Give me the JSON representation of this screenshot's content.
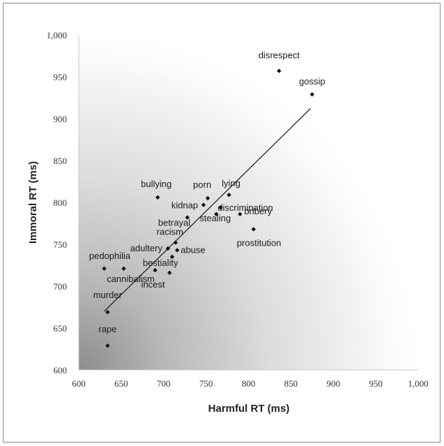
{
  "chart_data": {
    "type": "scatter",
    "xlabel": "Harmful RT (ms)",
    "ylabel": "Immoral RT (ms)",
    "xlim": [
      600,
      1000
    ],
    "ylim": [
      600,
      1000
    ],
    "xticks": [
      "600",
      "650",
      "700",
      "750",
      "800",
      "850",
      "900",
      "950",
      "1,000"
    ],
    "yticks": [
      "600",
      "650",
      "700",
      "750",
      "800",
      "850",
      "900",
      "950",
      "1,000"
    ],
    "grid": false,
    "legend": "none",
    "background": "radial gradient, darkest at lower-left",
    "marker_color": "#111111",
    "points": [
      {
        "label": "disrespect",
        "x": 836,
        "y": 957
      },
      {
        "label": "gossip",
        "x": 875,
        "y": 929
      },
      {
        "label": "bullying",
        "x": 693,
        "y": 806
      },
      {
        "label": "porn",
        "x": 752,
        "y": 805
      },
      {
        "label": "lying",
        "x": 777,
        "y": 809
      },
      {
        "label": "kidnap",
        "x": 747,
        "y": 797
      },
      {
        "label": "discrimination",
        "x": 767,
        "y": 794
      },
      {
        "label": "bribery",
        "x": 790,
        "y": 786
      },
      {
        "label": "stealing",
        "x": 762,
        "y": 786
      },
      {
        "label": "betrayal",
        "x": 728,
        "y": 782
      },
      {
        "label": "prostitution",
        "x": 806,
        "y": 768
      },
      {
        "label": "racism",
        "x": 714,
        "y": 752
      },
      {
        "label": "adultery",
        "x": 705,
        "y": 745
      },
      {
        "label": "abuse",
        "x": 716,
        "y": 743
      },
      {
        "label": "bestiality",
        "x": 710,
        "y": 735
      },
      {
        "label": "pedophilia",
        "x": 630,
        "y": 721
      },
      {
        "label": "cannibalism",
        "x": 653,
        "y": 721
      },
      {
        "label": "incest",
        "x": 690,
        "y": 719
      },
      {
        "label": "incest",
        "x": 707,
        "y": 716
      },
      {
        "label": "murder",
        "x": 634,
        "y": 669
      },
      {
        "label": "rape",
        "x": 634,
        "y": 629
      }
    ],
    "trendline": {
      "x": [
        630,
        873
      ],
      "y": [
        670,
        912
      ]
    }
  }
}
